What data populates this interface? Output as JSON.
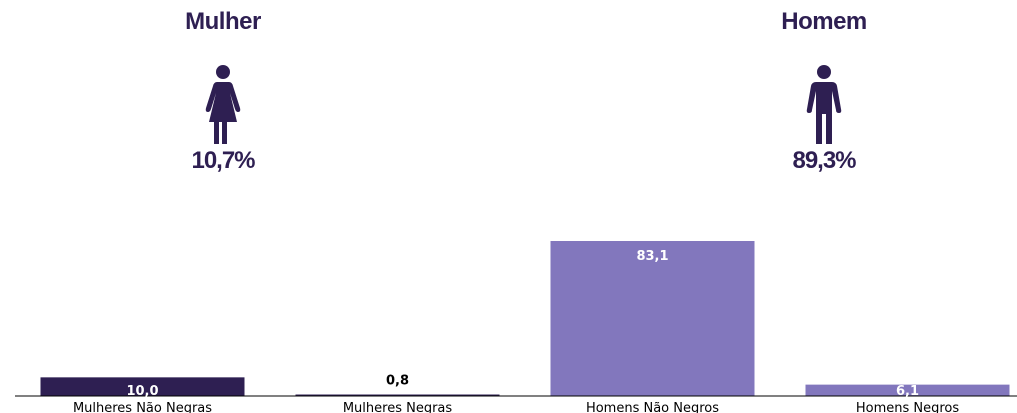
{
  "colors": {
    "text_dark": "#2e1f52",
    "bar_dark": "#2e1f52",
    "bar_light": "#8277bd",
    "axis": "#000000"
  },
  "genders": {
    "female": {
      "title": "Mulher",
      "percent": "10,7%",
      "icon": "woman-icon"
    },
    "male": {
      "title": "Homem",
      "percent": "89,3%",
      "icon": "man-icon"
    }
  },
  "chart_data": {
    "type": "bar",
    "categories": [
      "Mulheres Não Negras",
      "Mulheres Negras",
      "Homens Não Negros",
      "Homens Negros"
    ],
    "values": [
      10.0,
      0.8,
      83.1,
      6.1
    ],
    "value_labels": [
      "10,0",
      "0,8",
      "83,1",
      "6,1"
    ],
    "bar_colors": [
      "#2e1f52",
      "#2e1f52",
      "#8277bd",
      "#8277bd"
    ],
    "ylim": [
      0,
      83.1
    ],
    "grid": false,
    "title": "",
    "xlabel": "",
    "ylabel": ""
  }
}
